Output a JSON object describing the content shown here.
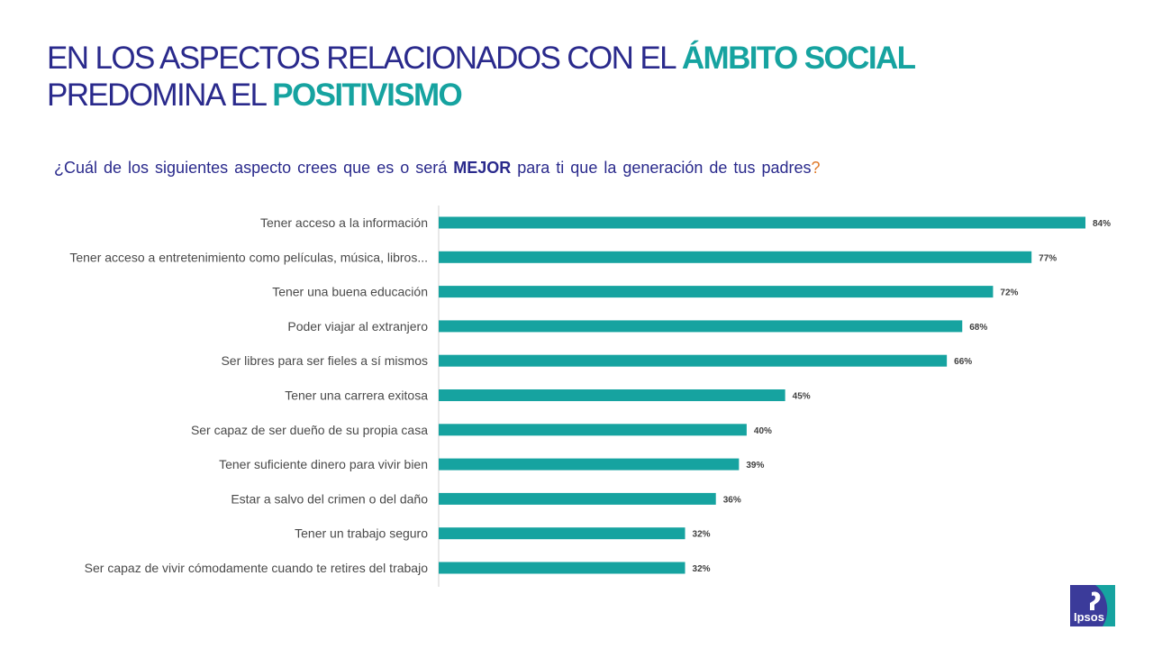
{
  "title": {
    "line1_prefix": "EN LOS ASPECTOS RELACIONADOS CON EL ",
    "line1_highlight": "ÁMBITO SOCIAL",
    "line2_prefix": "PREDOMINA EL ",
    "line2_highlight": "POSITIVISMO"
  },
  "question": {
    "prefix": "¿Cuál de los siguientes aspecto crees que es o será ",
    "emphasis": "MEJOR",
    "suffix": " para ti que la generación de tus padres",
    "end_mark": "?"
  },
  "logo": {
    "text": "Ipsos"
  },
  "colors": {
    "title_blue": "#2a2a8c",
    "teal": "#16a3a0",
    "question_mark": "#e07a2a",
    "logo_blue": "#3b3b9a"
  },
  "chart_data": {
    "type": "bar",
    "orientation": "horizontal",
    "categories": [
      "Tener acceso a la información",
      "Tener acceso a entretenimiento como películas, música, libros...",
      "Tener una buena educación",
      "Poder viajar al extranjero",
      "Ser libres para ser fieles a sí mismos",
      "Tener una carrera exitosa",
      "Ser capaz de ser dueño de su propia casa",
      "Tener suficiente dinero para vivir bien",
      "Estar a salvo del crimen o del daño",
      "Tener un trabajo seguro",
      "Ser capaz de vivir cómodamente cuando te retires del trabajo"
    ],
    "values": [
      84,
      77,
      72,
      68,
      66,
      45,
      40,
      39,
      36,
      32,
      32
    ],
    "labels": [
      "84%",
      "77%",
      "72%",
      "68%",
      "66%",
      "45%",
      "40%",
      "39%",
      "36%",
      "32%",
      "32%"
    ],
    "xlim": [
      0,
      100
    ],
    "grid": false,
    "bar_color": "#16a3a0"
  }
}
